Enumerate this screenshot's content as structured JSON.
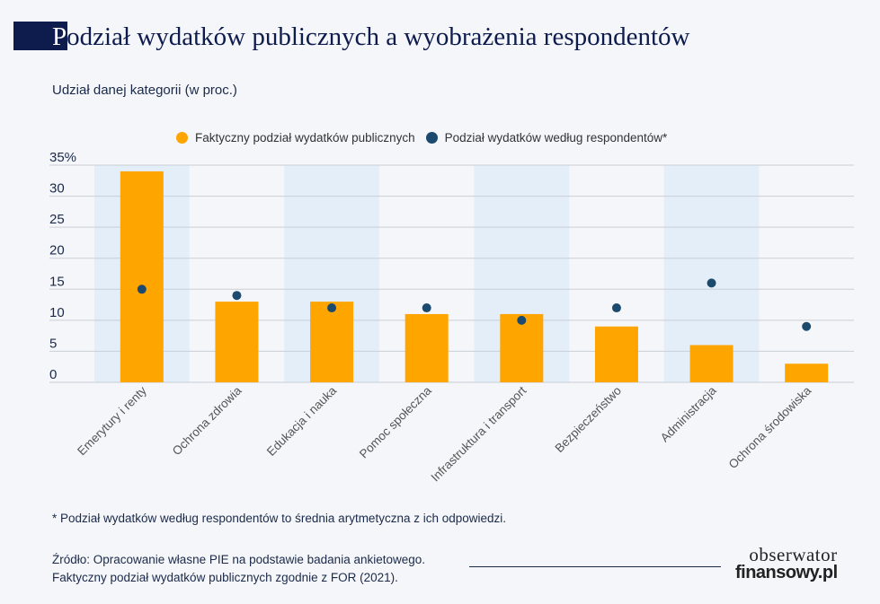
{
  "header": {
    "title_first": "P",
    "title_rest": "odział wydatków publicznych a wyobrażenia respondentów",
    "subtitle": "Udział danej kategorii (w proc.)"
  },
  "colors": {
    "actual": "#ffa500",
    "perceived": "#1c4a6e",
    "band": "#e3eef8",
    "title_bar": "#0d1b4d"
  },
  "chart_data": {
    "type": "bar",
    "categories": [
      "Emerytury i renty",
      "Ochrona zdrowia",
      "Edukacja i nauka",
      "Pomoc społeczna",
      "Infrastruktura i transport",
      "Bezpieczeństwo",
      "Administracja",
      "Ochrona środowiska"
    ],
    "series": [
      {
        "name": "Faktyczny podział wydatków publicznych",
        "style": "bar",
        "values": [
          34,
          13,
          13,
          11,
          11,
          9,
          6,
          3
        ]
      },
      {
        "name": "Podział wydatków według respondentów*",
        "style": "dot",
        "values": [
          15,
          14,
          12,
          12,
          10,
          12,
          16,
          9
        ]
      }
    ],
    "y_ticks": [
      "0",
      "5",
      "10",
      "15",
      "20",
      "25",
      "30",
      "35%"
    ],
    "ylim": [
      0,
      35
    ],
    "grid": true,
    "legend_position": "top"
  },
  "footnote": "* Podział wydatków według respondentów to średnia arytmetyczna z ich odpowiedzi.",
  "source": {
    "line1": "Źródło: Opracowanie własne PIE na podstawie badania ankietowego.",
    "line2": "Faktyczny podział wydatków publicznych zgodnie z FOR (2021)."
  },
  "logo": {
    "line1": "obserwator",
    "line2": "finansowy.pl"
  }
}
